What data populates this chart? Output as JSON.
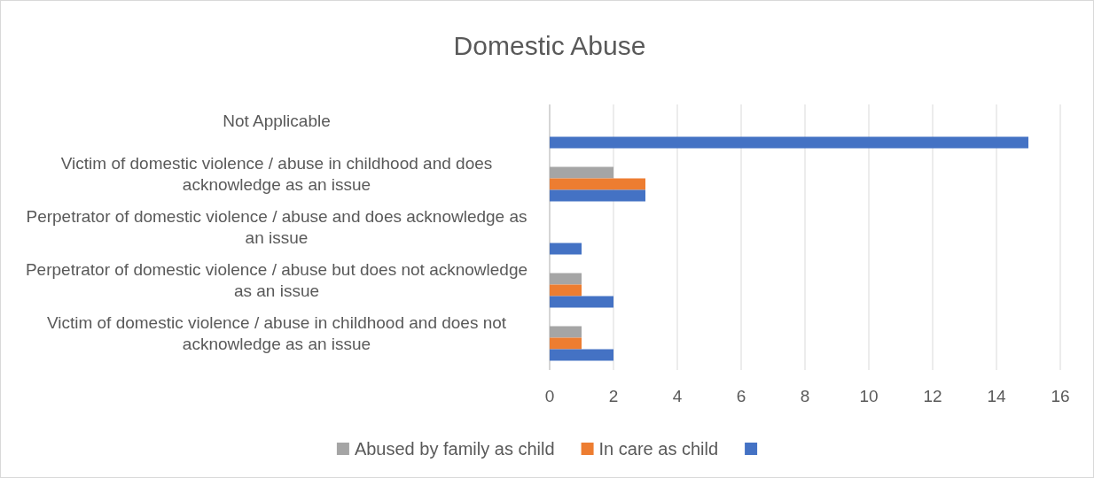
{
  "chart_data": {
    "type": "bar",
    "orientation": "horizontal",
    "title": "Domestic Abuse",
    "categories": [
      "Not Applicable",
      "Victim of domestic violence / abuse in childhood and does acknowledge as an issue",
      "Perpetrator of domestic violence / abuse and does acknowledge as an issue",
      "Perpetrator of domestic violence / abuse but does not acknowledge as an issue",
      "Victim of domestic violence / abuse in childhood and does not acknowledge as an issue"
    ],
    "series": [
      {
        "name": "Abused by family as child",
        "color": "#a5a5a5",
        "values": [
          null,
          2,
          null,
          1,
          1
        ]
      },
      {
        "name": "In care as child",
        "color": "#ed7d31",
        "values": [
          null,
          3,
          null,
          1,
          1
        ]
      },
      {
        "color": "#4472c4",
        "values": [
          15,
          3,
          1,
          2,
          2
        ]
      }
    ],
    "xlim": [
      0,
      16
    ],
    "xticks": [
      0,
      2,
      4,
      6,
      8,
      10,
      12,
      14,
      16
    ],
    "grid": "x",
    "legend": "bottom"
  }
}
